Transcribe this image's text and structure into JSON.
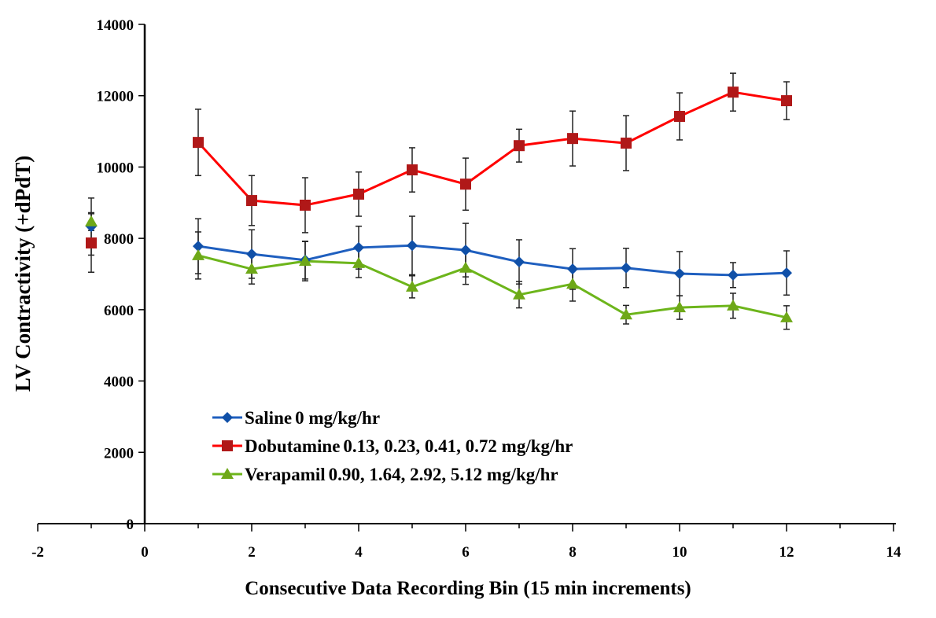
{
  "chart_data": {
    "type": "line",
    "xlabel": "Consecutive Data Recording Bin (15 min increments)",
    "ylabel": "LV Contractivity  (+dPdT)",
    "xlim": [
      -2,
      14
    ],
    "ylim": [
      0,
      14000
    ],
    "xticks": [
      "-2",
      "0",
      "2",
      "4",
      "6",
      "8",
      "10",
      "12",
      "14"
    ],
    "yticks": [
      "0",
      "2000",
      "4000",
      "6000",
      "8000",
      "10000",
      "12000",
      "14000"
    ],
    "grid": false,
    "legend_position": "bottom-left",
    "series": [
      {
        "name": "Saline",
        "dose": "0 mg/kg/hr",
        "color": "#1f5fbf",
        "marker": "diamond",
        "x": [
          -1,
          1,
          2,
          3,
          4,
          5,
          6,
          7,
          8,
          9,
          10,
          11,
          12
        ],
        "values": [
          8330,
          7780,
          7560,
          7390,
          7740,
          7800,
          7670,
          7340,
          7140,
          7170,
          7010,
          6970,
          7030
        ],
        "errors": [
          800,
          770,
          680,
          530,
          600,
          820,
          750,
          620,
          570,
          550,
          620,
          350,
          620
        ]
      },
      {
        "name": "Dobutamine",
        "dose": "0.13, 0.23, 0.41, 0.72 mg/kg/hr",
        "color": "#ff0000",
        "marker": "square",
        "x": [
          -1,
          1,
          2,
          3,
          4,
          5,
          6,
          7,
          8,
          9,
          10,
          11,
          12
        ],
        "values": [
          7870,
          10690,
          9060,
          8930,
          9240,
          9920,
          9520,
          10600,
          10800,
          10670,
          11420,
          12100,
          11860
        ],
        "errors": [
          820,
          930,
          700,
          770,
          620,
          620,
          730,
          460,
          770,
          770,
          660,
          530,
          530
        ]
      },
      {
        "name": "Verapamil",
        "dose": "0.90, 1.64, 2.92, 5.12 mg/kg/hr",
        "color": "#6db51b",
        "marker": "triangle",
        "x": [
          -1,
          1,
          2,
          3,
          4,
          5,
          6,
          7,
          8,
          9,
          10,
          11,
          12
        ],
        "values": [
          8470,
          7520,
          7140,
          7360,
          7300,
          6640,
          7170,
          6420,
          6720,
          5860,
          6060,
          6110,
          5780
        ],
        "errors": [
          250,
          660,
          420,
          550,
          400,
          310,
          460,
          370,
          480,
          260,
          330,
          350,
          330
        ]
      }
    ]
  }
}
